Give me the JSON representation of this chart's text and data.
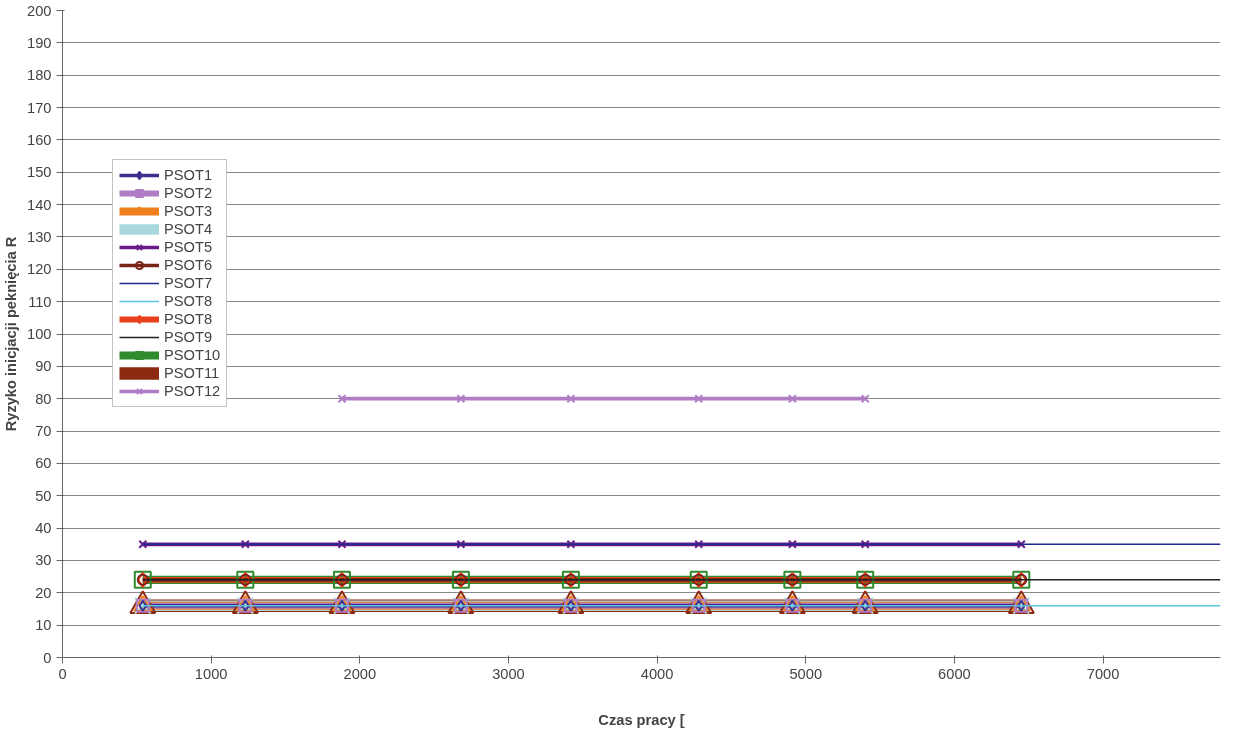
{
  "chart_data": {
    "type": "line",
    "xlabel": "Czas pracy [",
    "ylabel": "Ryzyko inicjacji peknięcia R",
    "x": [
      540,
      1230,
      1880,
      2680,
      3420,
      4280,
      4910,
      5400,
      6450,
      7790
    ],
    "xlim": [
      0,
      7790
    ],
    "xticks": [
      0,
      1000,
      2000,
      3000,
      4000,
      5000,
      6000,
      7000
    ],
    "ylim": [
      0,
      200
    ],
    "yticks": [
      0,
      10,
      20,
      30,
      40,
      50,
      60,
      70,
      80,
      90,
      100,
      110,
      120,
      130,
      140,
      150,
      160,
      170,
      180,
      190,
      200
    ],
    "grid": "y",
    "legend": "left",
    "series": [
      {
        "name": "PSOT1",
        "color": "#3b2f8f",
        "marker": "diamond",
        "values": [
          16,
          16,
          16,
          16,
          16,
          16,
          16,
          16,
          16,
          null
        ]
      },
      {
        "name": "PSOT2",
        "color": "#b07cc6",
        "marker": "square",
        "values": [
          16,
          16,
          16,
          16,
          16,
          16,
          16,
          16,
          16,
          null
        ]
      },
      {
        "name": "PSOT3",
        "color": "#f07f1f",
        "marker": "triangle",
        "values": [
          16,
          16,
          16,
          16,
          16,
          16,
          16,
          16,
          16,
          null
        ]
      },
      {
        "name": "PSOT4",
        "color": "#a8d8dc",
        "marker": "cross",
        "values": [
          16,
          16,
          16,
          16,
          16,
          16,
          16,
          16,
          16,
          null
        ]
      },
      {
        "name": "PSOT5",
        "color": "#6a1b8a",
        "marker": "cross",
        "values": [
          35,
          35,
          35,
          35,
          35,
          35,
          35,
          35,
          35,
          null
        ]
      },
      {
        "name": "PSOT6",
        "color": "#7a2418",
        "marker": "circle",
        "values": [
          24,
          24,
          24,
          24,
          24,
          24,
          24,
          24,
          24,
          null
        ]
      },
      {
        "name": "PSOT7",
        "color": "#1f2a8f",
        "marker": "none",
        "values": [
          35,
          35,
          35,
          35,
          35,
          35,
          35,
          35,
          35,
          35
        ]
      },
      {
        "name": "PSOT8",
        "color": "#5ec4e0",
        "marker": "none",
        "values": [
          16,
          16,
          16,
          16,
          16,
          16,
          16,
          16,
          16,
          16
        ]
      },
      {
        "name": "PSOT8",
        "color": "#e8401c",
        "marker": "diamond",
        "values": [
          24,
          24,
          24,
          24,
          24,
          24,
          24,
          24,
          24,
          null
        ]
      },
      {
        "name": "PSOT9",
        "color": "#222222",
        "marker": "none",
        "values": [
          24,
          24,
          24,
          24,
          24,
          24,
          24,
          24,
          24,
          24
        ]
      },
      {
        "name": "PSOT10",
        "color": "#2e8b2e",
        "marker": "square",
        "values": [
          24,
          24,
          24,
          24,
          24,
          24,
          24,
          24,
          24,
          null
        ]
      },
      {
        "name": "PSOT11",
        "color": "#8b2a10",
        "marker": "triangle",
        "values": [
          16,
          16,
          16,
          16,
          16,
          16,
          16,
          16,
          16,
          null
        ]
      },
      {
        "name": "PSOT12",
        "color": "#b07cc6",
        "marker": "cross",
        "values": [
          null,
          null,
          80,
          80,
          80,
          80,
          80,
          80,
          null,
          null
        ]
      }
    ]
  }
}
